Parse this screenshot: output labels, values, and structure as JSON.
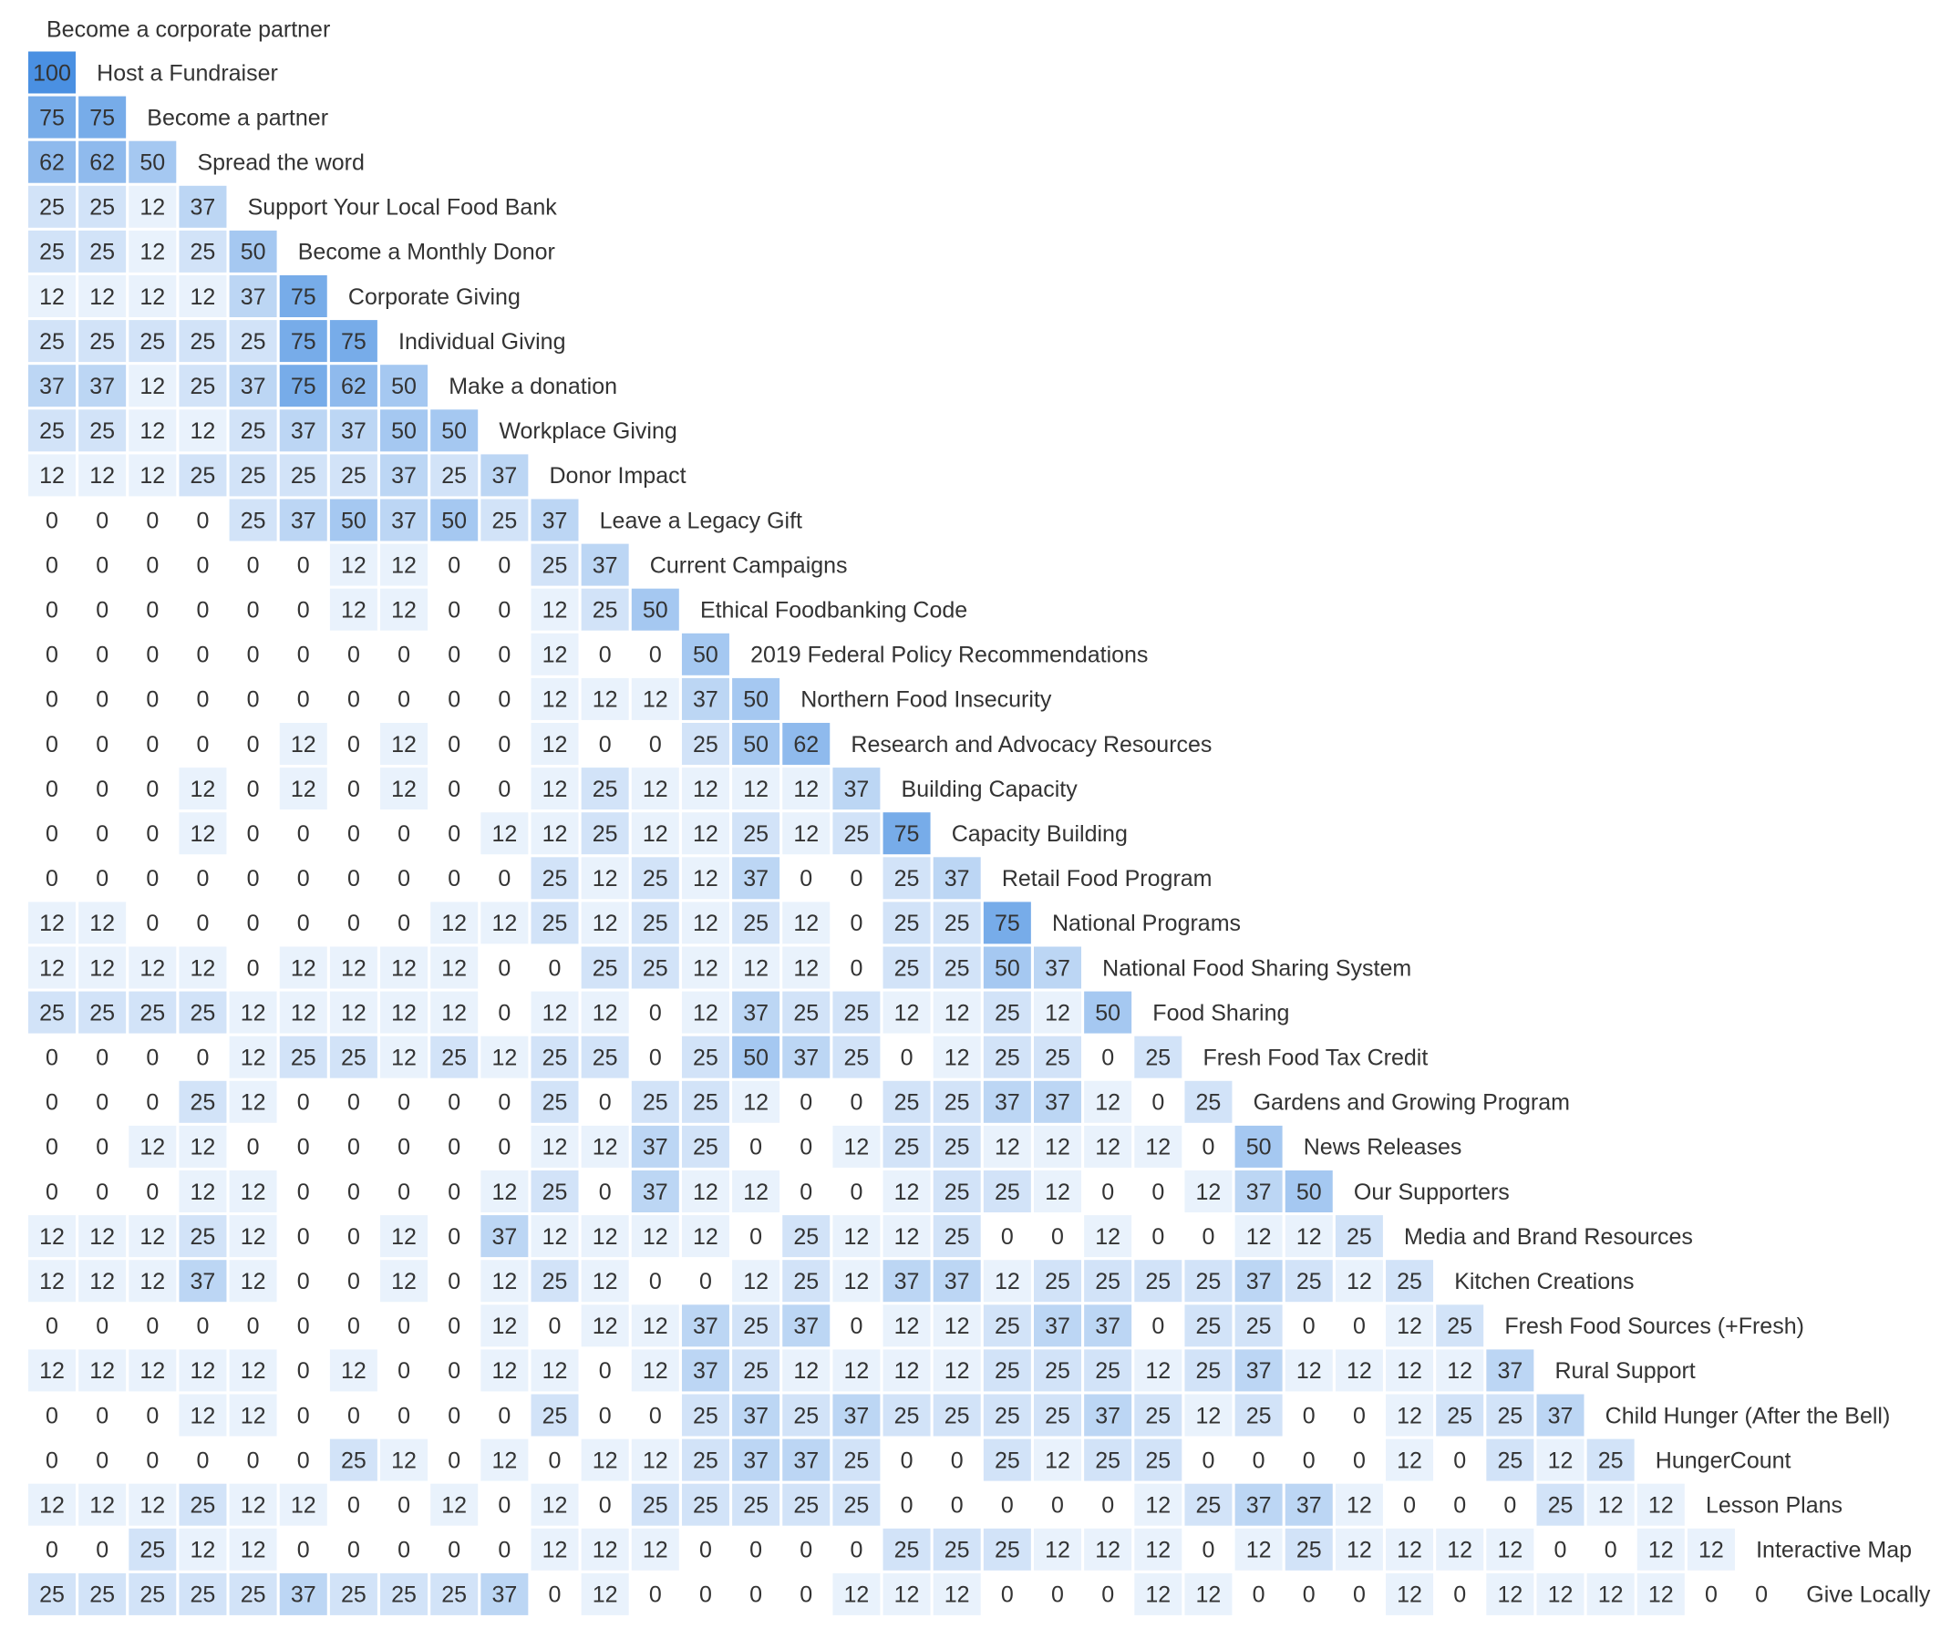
{
  "chart_data": {
    "type": "heatmap",
    "layout": "lower-triangular",
    "value_max": 100,
    "color_scale": [
      "#ffffff",
      "#4a90e2"
    ],
    "first_label": "Become a corporate partner",
    "rows": [
      {
        "label": "Host a Fundraiser",
        "values": [
          100
        ]
      },
      {
        "label": "Become a partner",
        "values": [
          75,
          75
        ]
      },
      {
        "label": "Spread the word",
        "values": [
          62,
          62,
          50
        ]
      },
      {
        "label": "Support Your Local Food Bank",
        "values": [
          25,
          25,
          12,
          37
        ]
      },
      {
        "label": "Become a Monthly Donor",
        "values": [
          25,
          25,
          12,
          25,
          50
        ]
      },
      {
        "label": "Corporate Giving",
        "values": [
          12,
          12,
          12,
          12,
          37,
          75
        ]
      },
      {
        "label": "Individual Giving",
        "values": [
          25,
          25,
          25,
          25,
          25,
          75,
          75
        ]
      },
      {
        "label": "Make a donation",
        "values": [
          37,
          37,
          12,
          25,
          37,
          75,
          62,
          50
        ]
      },
      {
        "label": "Workplace Giving",
        "values": [
          25,
          25,
          12,
          12,
          25,
          37,
          37,
          50,
          50
        ]
      },
      {
        "label": "Donor Impact",
        "values": [
          12,
          12,
          12,
          25,
          25,
          25,
          25,
          37,
          25,
          37
        ]
      },
      {
        "label": "Leave a Legacy Gift",
        "values": [
          0,
          0,
          0,
          0,
          25,
          37,
          50,
          37,
          50,
          25,
          37
        ]
      },
      {
        "label": "Current Campaigns",
        "values": [
          0,
          0,
          0,
          0,
          0,
          0,
          12,
          12,
          0,
          0,
          25,
          37
        ]
      },
      {
        "label": "Ethical Foodbanking Code",
        "values": [
          0,
          0,
          0,
          0,
          0,
          0,
          12,
          12,
          0,
          0,
          12,
          25,
          50
        ]
      },
      {
        "label": "2019 Federal Policy Recommendations",
        "values": [
          0,
          0,
          0,
          0,
          0,
          0,
          0,
          0,
          0,
          0,
          12,
          0,
          0,
          50
        ]
      },
      {
        "label": "Northern Food Insecurity",
        "values": [
          0,
          0,
          0,
          0,
          0,
          0,
          0,
          0,
          0,
          0,
          12,
          12,
          12,
          37,
          50
        ]
      },
      {
        "label": "Research and Advocacy Resources",
        "values": [
          0,
          0,
          0,
          0,
          0,
          12,
          0,
          12,
          0,
          0,
          12,
          0,
          0,
          25,
          50,
          62
        ]
      },
      {
        "label": "Building Capacity",
        "values": [
          0,
          0,
          0,
          12,
          0,
          12,
          0,
          12,
          0,
          0,
          12,
          25,
          12,
          12,
          12,
          12,
          37
        ]
      },
      {
        "label": "Capacity Building",
        "values": [
          0,
          0,
          0,
          12,
          0,
          0,
          0,
          0,
          0,
          12,
          12,
          25,
          12,
          12,
          25,
          12,
          25,
          75
        ]
      },
      {
        "label": "Retail Food Program",
        "values": [
          0,
          0,
          0,
          0,
          0,
          0,
          0,
          0,
          0,
          0,
          25,
          12,
          25,
          12,
          37,
          0,
          0,
          25,
          37
        ]
      },
      {
        "label": "National Programs",
        "values": [
          12,
          12,
          0,
          0,
          0,
          0,
          0,
          0,
          12,
          12,
          25,
          12,
          25,
          12,
          25,
          12,
          0,
          25,
          25,
          75
        ]
      },
      {
        "label": "National Food Sharing System",
        "values": [
          12,
          12,
          12,
          12,
          0,
          12,
          12,
          12,
          12,
          0,
          0,
          25,
          25,
          12,
          12,
          12,
          0,
          25,
          25,
          50,
          37
        ]
      },
      {
        "label": "Food Sharing",
        "values": [
          25,
          25,
          25,
          25,
          12,
          12,
          12,
          12,
          12,
          0,
          12,
          12,
          0,
          12,
          37,
          25,
          25,
          12,
          12,
          25,
          12,
          50
        ]
      },
      {
        "label": "Fresh Food Tax Credit",
        "values": [
          0,
          0,
          0,
          0,
          12,
          25,
          25,
          12,
          25,
          12,
          25,
          25,
          0,
          25,
          50,
          37,
          25,
          0,
          12,
          25,
          25,
          0,
          25
        ]
      },
      {
        "label": "Gardens and Growing Program",
        "values": [
          0,
          0,
          0,
          25,
          12,
          0,
          0,
          0,
          0,
          0,
          25,
          0,
          25,
          25,
          12,
          0,
          0,
          25,
          25,
          37,
          37,
          12,
          0,
          25
        ]
      },
      {
        "label": "News Releases",
        "values": [
          0,
          0,
          12,
          12,
          0,
          0,
          0,
          0,
          0,
          0,
          12,
          12,
          37,
          25,
          0,
          0,
          12,
          25,
          25,
          12,
          12,
          12,
          12,
          0,
          50
        ]
      },
      {
        "label": "Our Supporters",
        "values": [
          0,
          0,
          0,
          12,
          12,
          0,
          0,
          0,
          0,
          12,
          25,
          0,
          37,
          12,
          12,
          0,
          0,
          12,
          25,
          25,
          12,
          0,
          0,
          12,
          37,
          50
        ]
      },
      {
        "label": "Media and Brand Resources",
        "values": [
          12,
          12,
          12,
          25,
          12,
          0,
          0,
          12,
          0,
          37,
          12,
          12,
          12,
          12,
          0,
          25,
          12,
          12,
          25,
          0,
          0,
          12,
          0,
          0,
          12,
          12,
          25
        ]
      },
      {
        "label": "Kitchen Creations",
        "values": [
          12,
          12,
          12,
          37,
          12,
          0,
          0,
          12,
          0,
          12,
          25,
          12,
          0,
          0,
          12,
          25,
          12,
          37,
          37,
          12,
          25,
          25,
          25,
          25,
          37,
          25,
          12,
          25
        ]
      },
      {
        "label": "Fresh Food Sources (+Fresh)",
        "values": [
          0,
          0,
          0,
          0,
          0,
          0,
          0,
          0,
          0,
          12,
          0,
          12,
          12,
          37,
          25,
          37,
          0,
          12,
          12,
          25,
          37,
          37,
          0,
          25,
          25,
          0,
          0,
          12,
          25
        ]
      },
      {
        "label": "Rural Support",
        "values": [
          12,
          12,
          12,
          12,
          12,
          0,
          12,
          0,
          0,
          12,
          12,
          0,
          12,
          37,
          25,
          12,
          12,
          12,
          12,
          25,
          25,
          25,
          12,
          25,
          37,
          12,
          12,
          12,
          12,
          37
        ]
      },
      {
        "label": "Child Hunger (After the Bell)",
        "values": [
          0,
          0,
          0,
          12,
          12,
          0,
          0,
          0,
          0,
          0,
          25,
          0,
          0,
          25,
          37,
          25,
          37,
          25,
          25,
          25,
          25,
          37,
          25,
          12,
          25,
          0,
          0,
          12,
          25,
          25,
          37
        ]
      },
      {
        "label": "HungerCount",
        "values": [
          0,
          0,
          0,
          0,
          0,
          0,
          25,
          12,
          0,
          12,
          0,
          12,
          12,
          25,
          37,
          37,
          25,
          0,
          0,
          25,
          12,
          25,
          25,
          0,
          0,
          0,
          0,
          12,
          0,
          25,
          12,
          25
        ]
      },
      {
        "label": "Lesson Plans",
        "values": [
          12,
          12,
          12,
          25,
          12,
          12,
          0,
          0,
          12,
          0,
          12,
          0,
          25,
          25,
          25,
          25,
          25,
          0,
          0,
          0,
          0,
          0,
          12,
          25,
          37,
          37,
          12,
          0,
          0,
          0,
          25,
          12,
          12
        ]
      },
      {
        "label": "Interactive Map",
        "values": [
          0,
          0,
          25,
          12,
          12,
          0,
          0,
          0,
          0,
          0,
          12,
          12,
          12,
          0,
          0,
          0,
          0,
          25,
          25,
          25,
          12,
          12,
          12,
          0,
          12,
          25,
          12,
          12,
          12,
          12,
          0,
          0,
          12,
          12
        ]
      },
      {
        "label": "Give Locally",
        "values": [
          25,
          25,
          25,
          25,
          25,
          37,
          25,
          25,
          25,
          37,
          0,
          12,
          0,
          0,
          0,
          0,
          12,
          12,
          12,
          0,
          0,
          0,
          12,
          12,
          0,
          0,
          0,
          12,
          0,
          12,
          12,
          12,
          12,
          0,
          0
        ]
      }
    ]
  }
}
